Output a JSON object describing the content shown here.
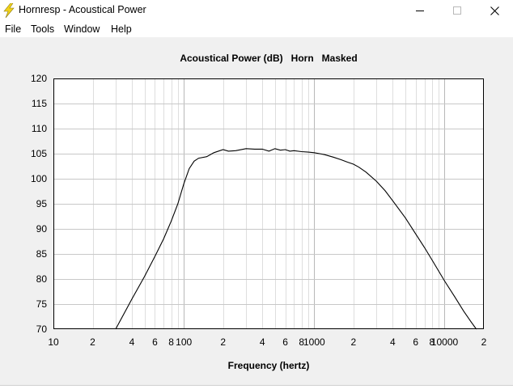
{
  "window": {
    "title": "Hornresp - Acoustical Power",
    "app_icon": "lightning-bolt-icon",
    "controls": [
      "minimize-icon",
      "maximize-icon",
      "close-icon"
    ]
  },
  "menu": {
    "items": [
      {
        "label": "File"
      },
      {
        "label": "Tools"
      },
      {
        "label": "Window"
      },
      {
        "label": "Help"
      }
    ]
  },
  "chart_data": {
    "type": "line",
    "title": "Acoustical Power (dB)   Horn   Masked",
    "xlabel": "Frequency (hertz)",
    "ylabel": "",
    "xscale": "log",
    "xlim": [
      10,
      20000
    ],
    "ylim": [
      70,
      120
    ],
    "y_ticks": [
      "120",
      "115",
      "110",
      "105",
      "100",
      "95",
      "90",
      "85",
      "80",
      "75",
      "70"
    ],
    "x_ticks": [
      {
        "value": 10,
        "label": "10"
      },
      {
        "value": 20,
        "label": "2"
      },
      {
        "value": 40,
        "label": "4"
      },
      {
        "value": 60,
        "label": "6"
      },
      {
        "value": 80,
        "label": "8"
      },
      {
        "value": 100,
        "label": "100"
      },
      {
        "value": 200,
        "label": "2"
      },
      {
        "value": 400,
        "label": "4"
      },
      {
        "value": 600,
        "label": "6"
      },
      {
        "value": 800,
        "label": "8"
      },
      {
        "value": 1000,
        "label": "1000"
      },
      {
        "value": 2000,
        "label": "2"
      },
      {
        "value": 4000,
        "label": "4"
      },
      {
        "value": 6000,
        "label": "6"
      },
      {
        "value": 8000,
        "label": "8"
      },
      {
        "value": 10000,
        "label": "10000"
      },
      {
        "value": 20000,
        "label": "2"
      }
    ],
    "grid": true,
    "line_color": "#000000",
    "series": [
      {
        "points": [
          [
            30,
            70
          ],
          [
            40,
            76
          ],
          [
            50,
            80.5
          ],
          [
            60,
            84.5
          ],
          [
            70,
            88
          ],
          [
            80,
            91.5
          ],
          [
            90,
            95
          ],
          [
            100,
            99
          ],
          [
            110,
            102
          ],
          [
            120,
            103.5
          ],
          [
            130,
            104.1
          ],
          [
            150,
            104.4
          ],
          [
            170,
            105.2
          ],
          [
            200,
            105.8
          ],
          [
            220,
            105.5
          ],
          [
            250,
            105.6
          ],
          [
            300,
            106
          ],
          [
            350,
            105.9
          ],
          [
            400,
            105.9
          ],
          [
            450,
            105.5
          ],
          [
            500,
            106
          ],
          [
            550,
            105.7
          ],
          [
            600,
            105.8
          ],
          [
            650,
            105.5
          ],
          [
            700,
            105.6
          ],
          [
            800,
            105.4
          ],
          [
            900,
            105.3
          ],
          [
            1000,
            105.2
          ],
          [
            1100,
            105
          ],
          [
            1200,
            104.8
          ],
          [
            1400,
            104.3
          ],
          [
            1600,
            103.8
          ],
          [
            1800,
            103.3
          ],
          [
            2000,
            102.9
          ],
          [
            2200,
            102.3
          ],
          [
            2500,
            101.3
          ],
          [
            3000,
            99.5
          ],
          [
            3500,
            97.6
          ],
          [
            4000,
            95.6
          ],
          [
            5000,
            92.2
          ],
          [
            6000,
            89
          ],
          [
            7000,
            86.3
          ],
          [
            8000,
            83.8
          ],
          [
            9000,
            81.6
          ],
          [
            10000,
            79.6
          ],
          [
            12000,
            76.4
          ],
          [
            14000,
            73.6
          ],
          [
            16000,
            71.4
          ],
          [
            17500,
            70
          ]
        ]
      }
    ]
  }
}
